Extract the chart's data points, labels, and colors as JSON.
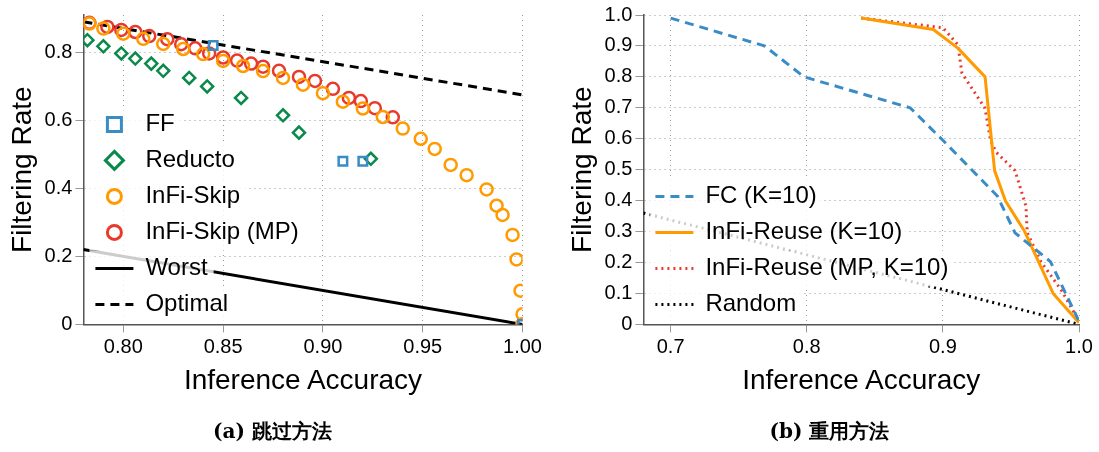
{
  "chart_data": [
    {
      "type": "scatter",
      "xlabel": "Inference Accuracy",
      "ylabel": "Filtering Rate",
      "annotations": [
        "(a) 跳过方法"
      ],
      "xlim": [
        0.78,
        1.0
      ],
      "ylim": [
        0,
        0.91
      ],
      "xticks": [
        {
          "value": 0.8,
          "label": "0.80"
        },
        {
          "value": 0.85,
          "label": "0.85"
        },
        {
          "value": 0.9,
          "label": "0.90"
        },
        {
          "value": 0.95,
          "label": "0.95"
        },
        {
          "value": 1.0,
          "label": "1.00"
        }
      ],
      "yticks": [
        0,
        0.2,
        0.4,
        0.6,
        0.8
      ],
      "grid": true,
      "legend": "bottom left",
      "series": [
        {
          "name": "FF",
          "color": "#3a8cc4",
          "marker": "square",
          "x": [
            0.845,
            0.91,
            0.92,
            1.0
          ],
          "values": [
            0.82,
            0.48,
            0.48,
            0
          ]
        },
        {
          "name": "Reducto",
          "color": "#0a8a4a",
          "marker": "diamond",
          "x": [
            0.782,
            0.79,
            0.799,
            0.806,
            0.814,
            0.82,
            0.833,
            0.842,
            0.859,
            0.88,
            0.888,
            0.924
          ],
          "values": [
            0.836,
            0.818,
            0.797,
            0.782,
            0.767,
            0.746,
            0.725,
            0.7,
            0.666,
            0.615,
            0.564,
            0.487
          ]
        },
        {
          "name": "InFi-Skip",
          "color": "#ff9a00",
          "marker": "circle",
          "x": [
            0.783,
            0.79,
            0.8,
            0.81,
            0.82,
            0.83,
            0.84,
            0.85,
            0.86,
            0.87,
            0.88,
            0.89,
            0.9,
            0.91,
            0.92,
            0.93,
            0.94,
            0.949,
            0.956,
            0.964,
            0.972,
            0.982,
            0.987,
            0.99,
            0.995,
            0.997,
            0.999,
            1.0,
            1.0
          ],
          "values": [
            0.885,
            0.87,
            0.855,
            0.84,
            0.825,
            0.81,
            0.795,
            0.775,
            0.76,
            0.745,
            0.725,
            0.705,
            0.68,
            0.655,
            0.635,
            0.61,
            0.576,
            0.546,
            0.516,
            0.469,
            0.439,
            0.397,
            0.349,
            0.322,
            0.263,
            0.191,
            0.099,
            0.03,
            0
          ]
        },
        {
          "name": "InFi-Skip (MP)",
          "color": "#e8392a",
          "marker": "circle",
          "x": [
            0.783,
            0.792,
            0.799,
            0.806,
            0.813,
            0.822,
            0.829,
            0.836,
            0.843,
            0.85,
            0.857,
            0.864,
            0.87,
            0.878,
            0.888,
            0.896,
            0.905,
            0.913,
            0.919,
            0.926,
            0.935,
            1.0
          ],
          "values": [
            0.887,
            0.875,
            0.866,
            0.86,
            0.848,
            0.839,
            0.824,
            0.812,
            0.797,
            0.785,
            0.776,
            0.767,
            0.758,
            0.746,
            0.728,
            0.716,
            0.693,
            0.666,
            0.657,
            0.636,
            0.609,
            0
          ]
        },
        {
          "name": "Worst",
          "type": "line",
          "color": "#000000",
          "marker": "none",
          "line_style": "solid",
          "x": [
            0.78,
            1.0
          ],
          "values": [
            0.22,
            0
          ]
        },
        {
          "name": "Optimal",
          "type": "line",
          "color": "#000000",
          "marker": "none",
          "line_style": "dashed",
          "x": [
            0.78,
            1.0
          ],
          "values": [
            0.89,
            0.675
          ]
        }
      ]
    },
    {
      "type": "line",
      "xlabel": "Inference Accuracy",
      "ylabel": "Filtering Rate",
      "annotations": [
        "(b) 重用方法"
      ],
      "xlim": [
        0.68,
        1.0
      ],
      "ylim": [
        0,
        1.0
      ],
      "xticks": [
        0.7,
        0.8,
        0.9,
        {
          "value": 1.0,
          "label": "1.0"
        }
      ],
      "yticks": [
        0,
        0.1,
        0.2,
        0.3,
        0.4,
        0.5,
        0.6,
        0.7,
        0.8,
        0.9,
        {
          "value": 1.0,
          "label": "1.0"
        }
      ],
      "grid": true,
      "legend": "bottom left",
      "marker": "none",
      "series": [
        {
          "name": "FC (K=10)",
          "color": "#3a8cc4",
          "line_style": "dashed",
          "x": [
            0.7,
            0.769,
            0.798,
            0.876,
            0.9,
            0.94,
            0.953,
            0.979,
            1.0
          ],
          "values": [
            0.99,
            0.9,
            0.8,
            0.7,
            0.595,
            0.415,
            0.296,
            0.203,
            0.01
          ]
        },
        {
          "name": "InFi-Reuse (K=10)",
          "color": "#ff9a00",
          "line_style": "solid",
          "x": [
            0.84,
            0.893,
            0.911,
            0.931,
            0.938,
            0.946,
            0.96,
            0.981,
            1.0
          ],
          "values": [
            0.99,
            0.953,
            0.893,
            0.8,
            0.497,
            0.399,
            0.301,
            0.1,
            0.005
          ]
        },
        {
          "name": "InFi-Reuse (MP, K=10)",
          "color": "#e8392a",
          "line_style": "dotted",
          "x": [
            0.84,
            0.9,
            0.911,
            0.914,
            0.931,
            0.935,
            0.939,
            0.953,
            0.961,
            0.962,
            0.972,
            0.987,
            1.0
          ],
          "values": [
            0.99,
            0.959,
            0.904,
            0.812,
            0.698,
            0.595,
            0.557,
            0.497,
            0.383,
            0.296,
            0.203,
            0.111,
            0.01
          ]
        },
        {
          "name": "Random",
          "color": "#000000",
          "line_style": "dotted",
          "x": [
            0.68,
            1.0
          ],
          "values": [
            0.36,
            0
          ]
        }
      ]
    }
  ]
}
